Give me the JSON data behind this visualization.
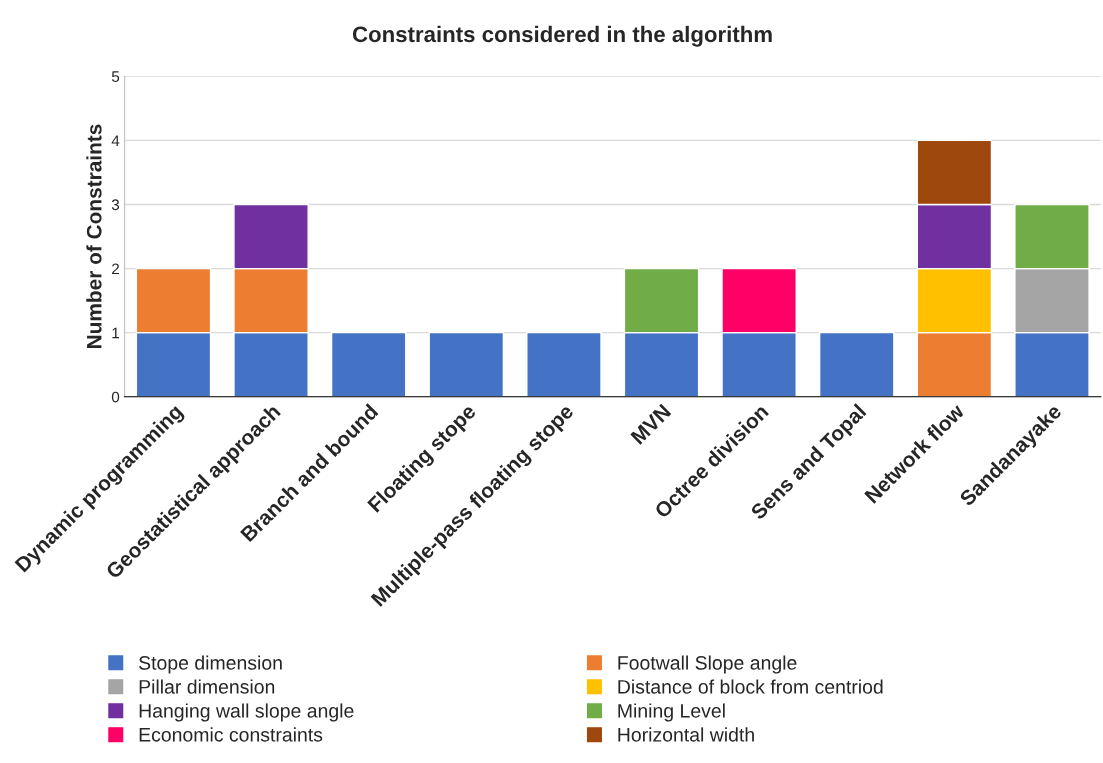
{
  "chart_data": {
    "type": "bar",
    "title": "Constraints considered in the algorithm",
    "ylabel": "Number of Constraints",
    "categories": [
      "Dynamic programming",
      "Geostatistical approach",
      "Branch and bound",
      "Floating stope",
      "Multiple-pass floating stope",
      "MVN",
      "Octree division",
      "Sens and Topal",
      "Network flow",
      "Sandanayake"
    ],
    "stacked": true,
    "ylim": [
      0,
      5
    ],
    "yticks": [
      0,
      1,
      2,
      3,
      4,
      5
    ],
    "grid": "y",
    "legend": "bottom",
    "series": [
      {
        "name": "Stope dimension",
        "color": "#4472c4",
        "values": [
          1,
          1,
          1,
          1,
          1,
          1,
          1,
          1,
          null,
          1
        ]
      },
      {
        "name": "Footwall Slope angle",
        "color": "#ed7d31",
        "values": [
          1,
          1,
          null,
          null,
          null,
          null,
          null,
          null,
          1,
          null
        ]
      },
      {
        "name": "Pillar dimension",
        "color": "#a5a5a5",
        "values": [
          null,
          null,
          null,
          null,
          null,
          null,
          null,
          null,
          null,
          1
        ]
      },
      {
        "name": "Distance of block from centriod",
        "color": "#ffc000",
        "values": [
          null,
          null,
          null,
          null,
          null,
          null,
          null,
          null,
          1,
          null
        ]
      },
      {
        "name": "Hanging wall slope angle",
        "color": "#7030a0",
        "values": [
          null,
          1,
          null,
          null,
          null,
          null,
          null,
          null,
          1,
          null
        ]
      },
      {
        "name": "Mining Level",
        "color": "#70ad47",
        "values": [
          null,
          null,
          null,
          null,
          null,
          1,
          null,
          null,
          null,
          1
        ]
      },
      {
        "name": "Economic constraints",
        "color": "#ff0066",
        "values": [
          null,
          null,
          null,
          null,
          null,
          null,
          1,
          null,
          null,
          null
        ]
      },
      {
        "name": "Horizontal width",
        "color": "#9e480e",
        "values": [
          null,
          null,
          null,
          null,
          null,
          null,
          null,
          null,
          1,
          null
        ]
      }
    ]
  }
}
